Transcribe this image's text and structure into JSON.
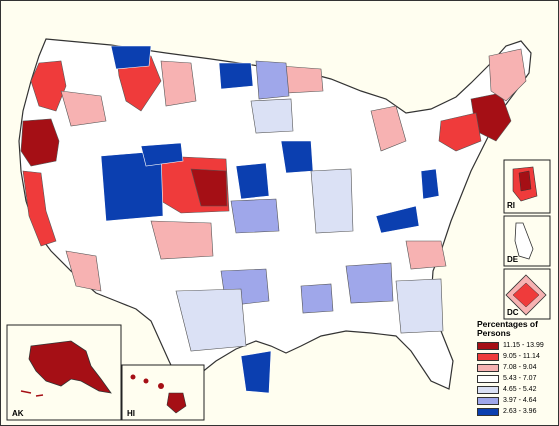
{
  "legend": {
    "title": "Percentages of Persons",
    "classes": [
      {
        "label": "11.15 - 13.99",
        "color": "#a50f15"
      },
      {
        "label": "9.05 - 11.14",
        "color": "#ef3b3b"
      },
      {
        "label": "7.08 - 9.04",
        "color": "#f7b2b2"
      },
      {
        "label": "5.43 - 7.07",
        "color": "#ffffff"
      },
      {
        "label": "4.65 - 5.42",
        "color": "#dbe1f5"
      },
      {
        "label": "3.97 - 4.64",
        "color": "#9fa7ea"
      },
      {
        "label": "2.63 - 3.96",
        "color": "#0b3fb0"
      }
    ]
  },
  "insets": {
    "ak": "AK",
    "hi": "HI",
    "ri": "RI",
    "de": "DE",
    "dc": "DC"
  },
  "colors": {
    "background": "#fffef0",
    "boundary": "#555555",
    "land_default": "#ffffff"
  }
}
